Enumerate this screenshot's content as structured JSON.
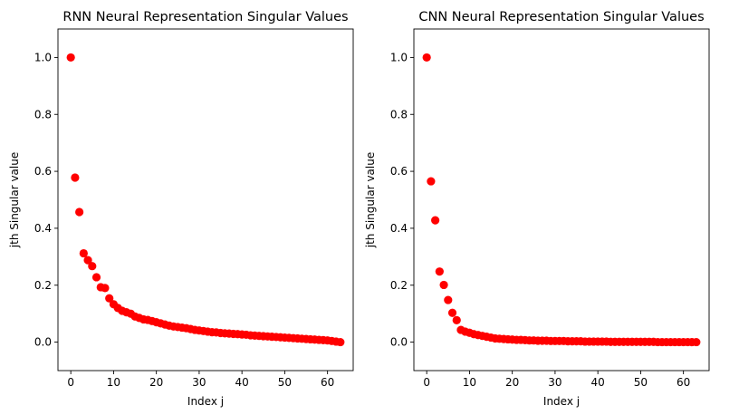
{
  "chart_data": [
    {
      "type": "scatter",
      "title": "RNN Neural Representation Singular Values",
      "xlabel": "Index j",
      "ylabel": "jth Singular value",
      "xlim": [
        -3,
        66
      ],
      "ylim": [
        -0.1,
        1.1
      ],
      "xticks": [
        0,
        10,
        20,
        30,
        40,
        50,
        60
      ],
      "yticks": [
        0.0,
        0.2,
        0.4,
        0.6,
        0.8,
        1.0
      ],
      "ytick_labels": [
        "0.0",
        "0.2",
        "0.4",
        "0.6",
        "0.8",
        "1.0"
      ],
      "grid": false,
      "marker_color": "#ff0000",
      "x": [
        0,
        1,
        2,
        3,
        4,
        5,
        6,
        7,
        8,
        9,
        10,
        11,
        12,
        13,
        14,
        15,
        16,
        17,
        18,
        19,
        20,
        21,
        22,
        23,
        24,
        25,
        26,
        27,
        28,
        29,
        30,
        31,
        32,
        33,
        34,
        35,
        36,
        37,
        38,
        39,
        40,
        41,
        42,
        43,
        44,
        45,
        46,
        47,
        48,
        49,
        50,
        51,
        52,
        53,
        54,
        55,
        56,
        57,
        58,
        59,
        60,
        61,
        62,
        63
      ],
      "y": [
        1.0,
        0.578,
        0.457,
        0.312,
        0.288,
        0.267,
        0.228,
        0.193,
        0.19,
        0.154,
        0.133,
        0.12,
        0.11,
        0.105,
        0.1,
        0.09,
        0.085,
        0.08,
        0.078,
        0.074,
        0.07,
        0.066,
        0.062,
        0.058,
        0.055,
        0.053,
        0.051,
        0.049,
        0.046,
        0.043,
        0.041,
        0.039,
        0.037,
        0.035,
        0.034,
        0.032,
        0.031,
        0.03,
        0.029,
        0.028,
        0.027,
        0.026,
        0.024,
        0.023,
        0.022,
        0.021,
        0.02,
        0.019,
        0.018,
        0.017,
        0.016,
        0.015,
        0.014,
        0.013,
        0.012,
        0.011,
        0.01,
        0.009,
        0.008,
        0.007,
        0.006,
        0.004,
        0.002,
        0.0
      ]
    },
    {
      "type": "scatter",
      "title": "CNN Neural Representation Singular Values",
      "xlabel": "Index j",
      "ylabel": "jth Singular value",
      "xlim": [
        -3,
        66
      ],
      "ylim": [
        -0.1,
        1.1
      ],
      "xticks": [
        0,
        10,
        20,
        30,
        40,
        50,
        60
      ],
      "yticks": [
        0.0,
        0.2,
        0.4,
        0.6,
        0.8,
        1.0
      ],
      "ytick_labels": [
        "0.0",
        "0.2",
        "0.4",
        "0.6",
        "0.8",
        "1.0"
      ],
      "grid": false,
      "marker_color": "#ff0000",
      "x": [
        0,
        1,
        2,
        3,
        4,
        5,
        6,
        7,
        8,
        9,
        10,
        11,
        12,
        13,
        14,
        15,
        16,
        17,
        18,
        19,
        20,
        21,
        22,
        23,
        24,
        25,
        26,
        27,
        28,
        29,
        30,
        31,
        32,
        33,
        34,
        35,
        36,
        37,
        38,
        39,
        40,
        41,
        42,
        43,
        44,
        45,
        46,
        47,
        48,
        49,
        50,
        51,
        52,
        53,
        54,
        55,
        56,
        57,
        58,
        59,
        60,
        61,
        62,
        63
      ],
      "y": [
        1.0,
        0.565,
        0.428,
        0.248,
        0.201,
        0.148,
        0.103,
        0.077,
        0.043,
        0.037,
        0.033,
        0.028,
        0.025,
        0.022,
        0.019,
        0.016,
        0.013,
        0.012,
        0.011,
        0.01,
        0.009,
        0.008,
        0.008,
        0.007,
        0.006,
        0.006,
        0.005,
        0.005,
        0.005,
        0.004,
        0.004,
        0.004,
        0.004,
        0.003,
        0.003,
        0.003,
        0.003,
        0.002,
        0.002,
        0.002,
        0.002,
        0.002,
        0.002,
        0.001,
        0.001,
        0.001,
        0.001,
        0.001,
        0.001,
        0.001,
        0.001,
        0.001,
        0.001,
        0.001,
        0.0,
        0.0,
        0.0,
        0.0,
        0.0,
        0.0,
        0.0,
        0.0,
        0.0,
        0.0
      ]
    }
  ]
}
